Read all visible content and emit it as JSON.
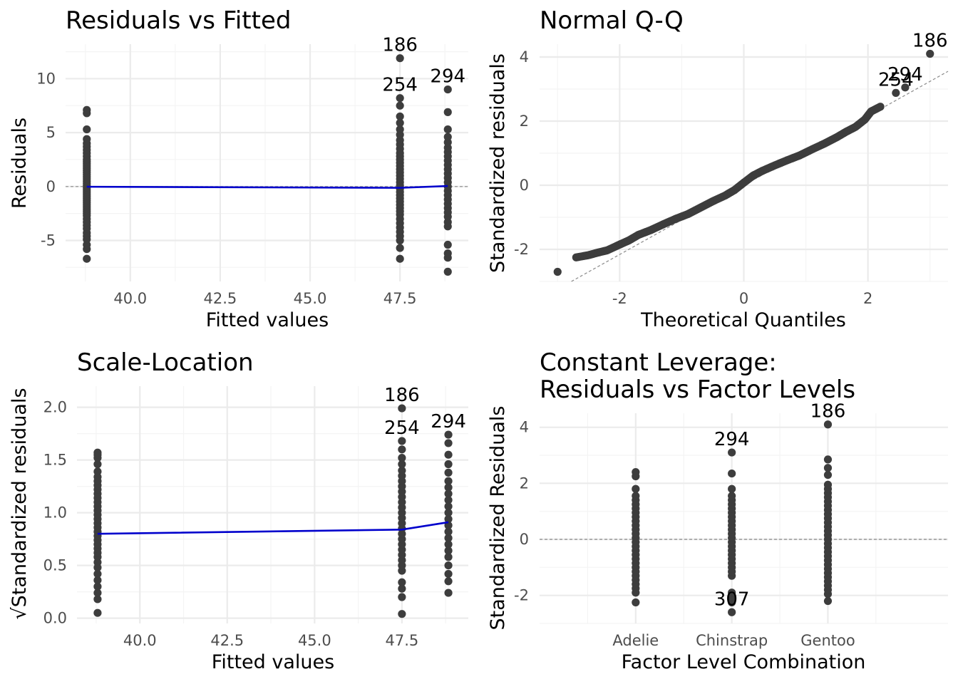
{
  "chart_data": [
    {
      "id": "rvf",
      "type": "scatter",
      "title": "Residuals vs Fitted",
      "xlabel": "Fitted values",
      "ylabel": "Residuals",
      "xlim": [
        38.2,
        49.4
      ],
      "ylim": [
        -8.8,
        13.2
      ],
      "xticks": [
        40.0,
        42.5,
        45.0,
        47.5
      ],
      "xtick_labels": [
        "40.0",
        "42.5",
        "45.0",
        "47.5"
      ],
      "yticks": [
        -5,
        0,
        5,
        10
      ],
      "ytick_labels": [
        "-5",
        "0",
        "5",
        "10"
      ],
      "xminor": [
        38.75,
        41.25,
        43.75,
        46.25,
        48.75
      ],
      "yminor": [
        -7.5,
        -2.5,
        2.5,
        7.5,
        12.5
      ],
      "reference_y": 0,
      "groups": [
        {
          "x": 38.79,
          "y": [
            -6.7,
            -5.8,
            -5.4,
            -4.9,
            -4.6,
            -4.3,
            -3.9,
            -3.6,
            -3.3,
            -3.0,
            -2.7,
            -2.5,
            -2.3,
            -2.1,
            -1.9,
            -1.7,
            -1.5,
            -1.3,
            -1.1,
            -0.9,
            -0.7,
            -0.5,
            -0.3,
            -0.1,
            0.1,
            0.3,
            0.5,
            0.7,
            0.9,
            1.1,
            1.3,
            1.5,
            1.7,
            1.9,
            2.1,
            2.3,
            2.5,
            2.8,
            3.1,
            3.4,
            3.7,
            4.0,
            4.4,
            5.3,
            6.8,
            7.1
          ]
        },
        {
          "x": 47.5,
          "y": [
            -6.7,
            -5.7,
            -5.0,
            -4.6,
            -4.2,
            -3.8,
            -3.4,
            -3.0,
            -2.6,
            -2.3,
            -2.0,
            -1.7,
            -1.4,
            -1.1,
            -0.8,
            -0.5,
            -0.2,
            0.1,
            0.4,
            0.7,
            1.0,
            1.3,
            1.6,
            1.9,
            2.2,
            2.5,
            2.8,
            3.1,
            3.5,
            3.9,
            4.3,
            4.8,
            5.3,
            5.9,
            6.5,
            7.5,
            8.2,
            11.9
          ]
        },
        {
          "x": 48.83,
          "y": [
            -7.9,
            -6.6,
            -6.2,
            -5.4,
            -3.7,
            -3.3,
            -2.8,
            -2.4,
            -2.0,
            -1.6,
            -1.2,
            -0.8,
            -0.4,
            0.0,
            0.4,
            0.8,
            1.2,
            1.6,
            2.0,
            2.4,
            2.8,
            3.2,
            3.6,
            4.1,
            4.6,
            5.3,
            6.9,
            9.0
          ]
        }
      ],
      "smooth": {
        "x": [
          38.79,
          47.5,
          48.83
        ],
        "y": [
          -0.02,
          -0.12,
          0.05
        ]
      },
      "labels": [
        {
          "text": "186",
          "x": 47.5,
          "y": 11.9
        },
        {
          "text": "254",
          "x": 47.5,
          "y": 8.2
        },
        {
          "text": "294",
          "x": 48.83,
          "y": 9.0
        }
      ]
    },
    {
      "id": "qq",
      "type": "scatter",
      "title": "Normal Q-Q",
      "xlabel": "Theoretical Quantiles",
      "ylabel": "Standardized residuals",
      "xlim": [
        -3.29,
        3.29
      ],
      "ylim": [
        -3.0,
        4.4
      ],
      "xticks": [
        -2,
        0,
        2
      ],
      "xtick_labels": [
        "-2",
        "0",
        "2"
      ],
      "yticks": [
        -2,
        0,
        2,
        4
      ],
      "ytick_labels": [
        "-2",
        "0",
        "2",
        "4"
      ],
      "xminor": [
        -3,
        -1,
        1,
        3
      ],
      "yminor": [
        -3,
        -1,
        1,
        3
      ],
      "qq_curve": {
        "x": [
          -2.7,
          -2.5,
          -2.35,
          -2.2,
          -2.0,
          -1.85,
          -1.7,
          -1.5,
          -1.3,
          -1.1,
          -0.9,
          -0.7,
          -0.5,
          -0.3,
          -0.15,
          0.0,
          0.15,
          0.3,
          0.5,
          0.7,
          0.9,
          1.1,
          1.3,
          1.5,
          1.65,
          1.8,
          1.95,
          2.05,
          2.2
        ],
        "y": [
          -2.25,
          -2.18,
          -2.1,
          -2.03,
          -1.85,
          -1.72,
          -1.55,
          -1.4,
          -1.22,
          -1.05,
          -0.9,
          -0.7,
          -0.5,
          -0.32,
          -0.15,
          0.08,
          0.3,
          0.45,
          0.62,
          0.78,
          0.93,
          1.12,
          1.3,
          1.5,
          1.67,
          1.82,
          2.05,
          2.3,
          2.45
        ]
      },
      "extra_points": [
        {
          "x": -3.0,
          "y": -2.7
        },
        {
          "x": 2.45,
          "y": 2.88
        },
        {
          "x": 2.6,
          "y": 3.05
        },
        {
          "x": 3.0,
          "y": 4.1
        }
      ],
      "reference_line": {
        "intercept": 0,
        "slope": 1.08
      },
      "labels": [
        {
          "text": "186",
          "x": 3.0,
          "y": 4.1
        },
        {
          "text": "294",
          "x": 2.6,
          "y": 3.05
        },
        {
          "text": "254",
          "x": 2.45,
          "y": 2.88
        }
      ]
    },
    {
      "id": "sl",
      "type": "scatter",
      "title": "Scale-Location",
      "xlabel": "Fitted values",
      "ylabel": "√Standardized residuals",
      "xlim": [
        38.2,
        49.4
      ],
      "ylim": [
        -0.05,
        2.2
      ],
      "xticks": [
        40.0,
        42.5,
        45.0,
        47.5
      ],
      "xtick_labels": [
        "40.0",
        "42.5",
        "45.0",
        "47.5"
      ],
      "yticks": [
        0.0,
        0.5,
        1.0,
        1.5,
        2.0
      ],
      "ytick_labels": [
        "0.0",
        "0.5",
        "1.0",
        "1.5",
        "2.0"
      ],
      "xminor": [
        38.75,
        41.25,
        43.75,
        46.25,
        48.75
      ],
      "yminor": [
        0.25,
        0.75,
        1.25,
        1.75
      ],
      "groups": [
        {
          "x": 38.79,
          "y": [
            0.05,
            0.18,
            0.24,
            0.3,
            0.36,
            0.42,
            0.48,
            0.53,
            0.58,
            0.62,
            0.66,
            0.7,
            0.74,
            0.78,
            0.82,
            0.86,
            0.9,
            0.94,
            0.98,
            1.02,
            1.06,
            1.1,
            1.14,
            1.18,
            1.22,
            1.26,
            1.3,
            1.34,
            1.39,
            1.46,
            1.52,
            1.55,
            1.57
          ]
        },
        {
          "x": 47.5,
          "y": [
            0.04,
            0.2,
            0.28,
            0.34,
            0.45,
            0.5,
            0.55,
            0.6,
            0.65,
            0.7,
            0.75,
            0.8,
            0.85,
            0.9,
            0.95,
            1.0,
            1.05,
            1.1,
            1.15,
            1.2,
            1.25,
            1.3,
            1.35,
            1.4,
            1.46,
            1.52,
            1.6,
            1.68,
            1.99
          ]
        },
        {
          "x": 48.83,
          "y": [
            0.24,
            0.35,
            0.42,
            0.5,
            0.58,
            0.64,
            0.7,
            0.76,
            0.82,
            0.88,
            0.94,
            1.0,
            1.06,
            1.12,
            1.18,
            1.24,
            1.3,
            1.38,
            1.46,
            1.55,
            1.66,
            1.74
          ]
        }
      ],
      "smooth": {
        "x": [
          38.79,
          47.5,
          48.83
        ],
        "y": [
          0.8,
          0.84,
          0.91
        ]
      },
      "labels": [
        {
          "text": "186",
          "x": 47.5,
          "y": 1.99
        },
        {
          "text": "254",
          "x": 47.5,
          "y": 1.68
        },
        {
          "text": "294",
          "x": 48.83,
          "y": 1.74
        }
      ]
    },
    {
      "id": "lev",
      "type": "scatter",
      "title": "Constant Leverage:",
      "title_line2": "Residuals vs Factor Levels",
      "xlabel": "Factor Level Combination",
      "ylabel": "Standardized Residuals",
      "xlim": [
        0.0,
        4.25
      ],
      "ylim": [
        -3.0,
        4.5
      ],
      "categories": [
        "Adelie",
        "Chinstrap",
        "Gentoo"
      ],
      "category_positions": [
        1,
        2,
        3
      ],
      "xminor": [
        0.5,
        1.5,
        2.5,
        3.5
      ],
      "yticks": [
        -2,
        0,
        2,
        4
      ],
      "ytick_labels": [
        "-2",
        "0",
        "2",
        "4"
      ],
      "yminor": [
        -3,
        -1,
        1,
        3
      ],
      "reference_y": 0,
      "groups": [
        {
          "x": 1,
          "y": [
            -2.25,
            -1.9,
            -1.75,
            -1.6,
            -1.45,
            -1.3,
            -1.15,
            -1.0,
            -0.85,
            -0.7,
            -0.55,
            -0.4,
            -0.25,
            -0.1,
            0.05,
            0.2,
            0.35,
            0.5,
            0.65,
            0.8,
            0.95,
            1.1,
            1.25,
            1.4,
            1.55,
            1.8,
            2.25,
            2.4
          ]
        },
        {
          "x": 2,
          "y": [
            -2.6,
            -2.25,
            -2.1,
            -1.9,
            -1.3,
            -1.15,
            -1.0,
            -0.85,
            -0.7,
            -0.55,
            -0.4,
            -0.25,
            -0.1,
            0.05,
            0.2,
            0.35,
            0.5,
            0.65,
            0.8,
            0.95,
            1.1,
            1.25,
            1.4,
            1.55,
            1.8,
            2.35,
            3.1
          ]
        },
        {
          "x": 3,
          "y": [
            -2.2,
            -1.95,
            -1.8,
            -1.65,
            -1.5,
            -1.35,
            -1.2,
            -1.05,
            -0.9,
            -0.75,
            -0.6,
            -0.45,
            -0.3,
            -0.15,
            0.0,
            0.15,
            0.3,
            0.45,
            0.6,
            0.75,
            0.9,
            1.05,
            1.2,
            1.35,
            1.5,
            1.65,
            1.8,
            1.95,
            2.3,
            2.55,
            2.85,
            4.1
          ]
        }
      ],
      "labels": [
        {
          "text": "294",
          "x": 2,
          "y": 3.1
        },
        {
          "text": "186",
          "x": 3,
          "y": 4.1
        },
        {
          "text": "307",
          "x": 2,
          "y": -2.6
        }
      ]
    }
  ]
}
